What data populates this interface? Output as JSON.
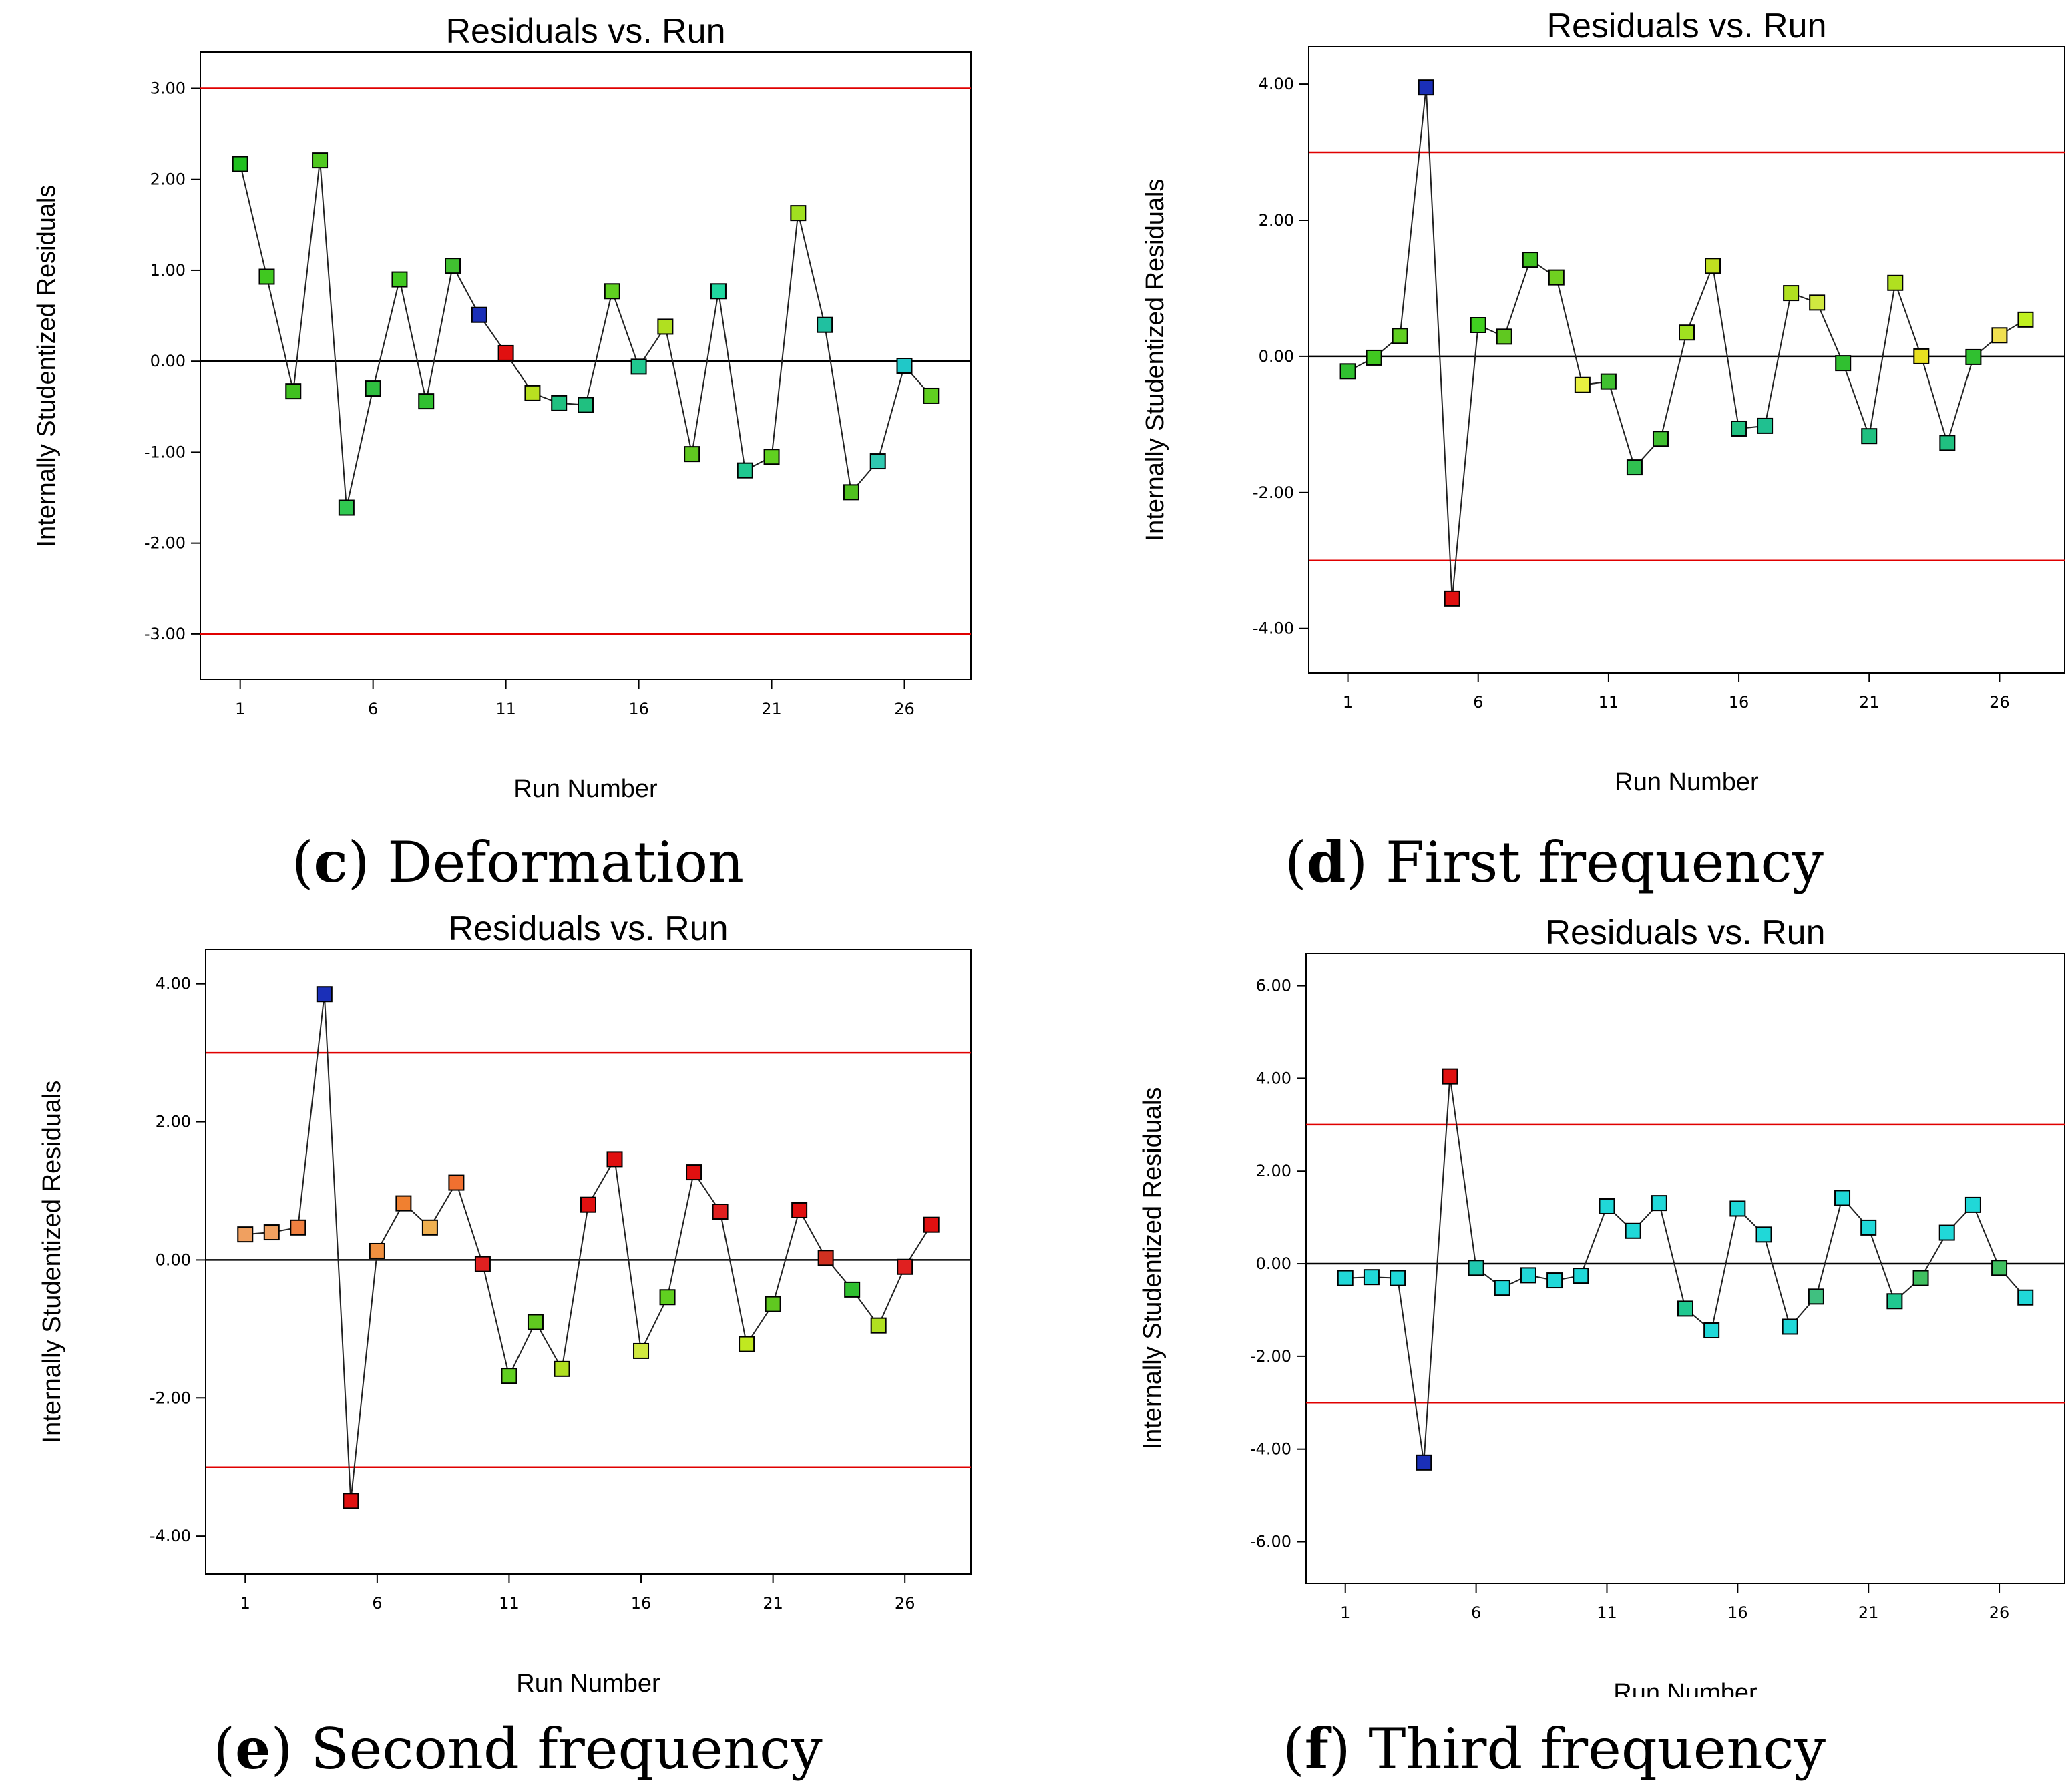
{
  "colors": {
    "limit_line": "#e00000",
    "zero_line": "#000000",
    "series_line": "#222222",
    "frame": "#000000"
  },
  "chart_data": [
    {
      "type": "scatter",
      "panel_letter": "c",
      "panel_name": "Deformation",
      "title": "Residuals vs. Run",
      "xlabel": "Run Number",
      "ylabel": "Internally Studentized Residuals",
      "xlim": [
        -0.5,
        28.5
      ],
      "xticks": [
        1,
        6,
        11,
        16,
        21,
        26
      ],
      "xtick_labels": [
        "1",
        "6",
        "11",
        "16",
        "21",
        "26"
      ],
      "ylim": [
        -3.5,
        3.4
      ],
      "yticks": [
        3,
        2,
        1,
        0,
        -1,
        -2,
        -3
      ],
      "ytick_labels": [
        "3.00",
        "2.00",
        "1.00",
        "0.00",
        "-1.00",
        "-2.00",
        "-3.00"
      ],
      "limit_lines": [
        3.0,
        -3.0
      ],
      "x": [
        1,
        2,
        3,
        4,
        5,
        6,
        7,
        8,
        9,
        10,
        11,
        12,
        13,
        14,
        15,
        16,
        17,
        18,
        19,
        20,
        21,
        22,
        23,
        24,
        25,
        26,
        27
      ],
      "values": [
        2.17,
        0.93,
        -0.33,
        2.21,
        -1.61,
        -0.3,
        0.9,
        -0.44,
        1.05,
        0.51,
        0.09,
        -0.35,
        -0.46,
        -0.48,
        0.77,
        -0.06,
        0.38,
        -1.02,
        0.77,
        -1.2,
        -1.05,
        1.63,
        0.4,
        -1.44,
        -1.1,
        -0.05,
        -0.38
      ],
      "point_colors": [
        "#20c020",
        "#40c820",
        "#40c020",
        "#50c820",
        "#30c850",
        "#30c040",
        "#40c820",
        "#30c030",
        "#40c030",
        "#1a2fb8",
        "#e01010",
        "#b8e020",
        "#20c080",
        "#20c080",
        "#60d020",
        "#20c890",
        "#b0e020",
        "#60c820",
        "#20d8a0",
        "#20c890",
        "#60d020",
        "#a0e020",
        "#20c0a0",
        "#50c020",
        "#30c8b0",
        "#20c8c8",
        "#60d020"
      ]
    },
    {
      "type": "scatter",
      "panel_letter": "d",
      "panel_name": "First frequency",
      "title": "Residuals vs. Run",
      "xlabel": "Run Number",
      "ylabel": "Internally Studentized Residuals",
      "xlim": [
        -0.5,
        28.5
      ],
      "xticks": [
        1,
        6,
        11,
        16,
        21,
        26
      ],
      "xtick_labels": [
        "1",
        "6",
        "11",
        "16",
        "21",
        "26"
      ],
      "ylim": [
        -4.65,
        4.55
      ],
      "yticks": [
        4,
        2,
        0,
        -2,
        -4
      ],
      "ytick_labels": [
        "4.00",
        "2.00",
        "0.00",
        "-2.00",
        "-4.00"
      ],
      "limit_lines": [
        3.0,
        -3.0
      ],
      "x": [
        1,
        2,
        3,
        4,
        5,
        6,
        7,
        8,
        9,
        10,
        11,
        12,
        13,
        14,
        15,
        16,
        17,
        18,
        19,
        20,
        21,
        22,
        23,
        24,
        25,
        26,
        27
      ],
      "values": [
        -0.22,
        -0.02,
        0.3,
        3.95,
        -3.56,
        0.46,
        0.29,
        1.42,
        1.16,
        -0.42,
        -0.37,
        -1.63,
        -1.21,
        0.35,
        1.33,
        -1.06,
        -1.02,
        0.93,
        0.79,
        -0.1,
        -1.17,
        1.08,
        0.0,
        -1.27,
        -0.01,
        0.31,
        0.54
      ],
      "point_colors": [
        "#30c030",
        "#40c820",
        "#60d020",
        "#1a2fb8",
        "#e01010",
        "#40d020",
        "#60c820",
        "#40c020",
        "#70d020",
        "#e8f040",
        "#40c030",
        "#30c050",
        "#40c030",
        "#a0e020",
        "#c0e020",
        "#20c080",
        "#20c090",
        "#b0e020",
        "#d0e840",
        "#30c030",
        "#20c080",
        "#b0e020",
        "#e8e020",
        "#20c080",
        "#30c030",
        "#f0e050",
        "#c0f020"
      ]
    },
    {
      "type": "scatter",
      "panel_letter": "e",
      "panel_name": "Second frequency",
      "title": "Residuals vs. Run",
      "xlabel": "Run Number",
      "ylabel": "Internally Studentized Residuals",
      "xlim": [
        -0.5,
        28.5
      ],
      "xticks": [
        1,
        6,
        11,
        16,
        21,
        26
      ],
      "xtick_labels": [
        "1",
        "6",
        "11",
        "16",
        "21",
        "26"
      ],
      "ylim": [
        -4.55,
        4.5
      ],
      "yticks": [
        4,
        2,
        0,
        -2,
        -4
      ],
      "ytick_labels": [
        "4.00",
        "2.00",
        "0.00",
        "-2.00",
        "-4.00"
      ],
      "limit_lines": [
        3.0,
        -3.0
      ],
      "x": [
        1,
        2,
        3,
        4,
        5,
        6,
        7,
        8,
        9,
        10,
        11,
        12,
        13,
        14,
        15,
        16,
        17,
        18,
        19,
        20,
        21,
        22,
        23,
        24,
        25,
        26,
        27
      ],
      "values": [
        0.37,
        0.4,
        0.47,
        3.85,
        -3.49,
        0.13,
        0.82,
        0.47,
        1.12,
        -0.06,
        -1.68,
        -0.9,
        -1.58,
        0.8,
        1.46,
        -1.32,
        -0.54,
        1.27,
        0.7,
        -1.22,
        -0.64,
        0.72,
        0.03,
        -0.43,
        -0.95,
        -0.1,
        0.51
      ],
      "point_colors": [
        "#f0a060",
        "#f0a060",
        "#f08040",
        "#1a2fb8",
        "#e01010",
        "#f09040",
        "#f08030",
        "#f0b050",
        "#f07030",
        "#e02020",
        "#60d020",
        "#60c820",
        "#b0e020",
        "#e01010",
        "#e01010",
        "#d0e840",
        "#60d020",
        "#e01010",
        "#e02020",
        "#c0e820",
        "#60c820",
        "#e01010",
        "#d03020",
        "#30c030",
        "#b0e020",
        "#e02020",
        "#e01010"
      ]
    },
    {
      "type": "scatter",
      "panel_letter": "f",
      "panel_name": "Third frequency",
      "title": "Residuals vs. Run",
      "xlabel": "Run Number",
      "ylabel": "Internally Studentized Residuals",
      "xlim": [
        -0.5,
        28.5
      ],
      "xticks": [
        1,
        6,
        11,
        16,
        21,
        26
      ],
      "xtick_labels": [
        "1",
        "6",
        "11",
        "16",
        "21",
        "26"
      ],
      "ylim": [
        -6.9,
        6.7
      ],
      "yticks": [
        6,
        4,
        2,
        0,
        -2,
        -4,
        -6
      ],
      "ytick_labels": [
        "6.00",
        "4.00",
        "2.00",
        "0.00",
        "-2.00",
        "-4.00",
        "-6.00"
      ],
      "limit_lines": [
        3.0,
        -3.0
      ],
      "x": [
        1,
        2,
        3,
        4,
        5,
        6,
        7,
        8,
        9,
        10,
        11,
        12,
        13,
        14,
        15,
        16,
        17,
        18,
        19,
        20,
        21,
        22,
        23,
        24,
        25,
        26,
        27
      ],
      "values": [
        -0.31,
        -0.29,
        -0.31,
        -4.29,
        4.04,
        -0.09,
        -0.52,
        -0.25,
        -0.36,
        -0.26,
        1.24,
        0.71,
        1.31,
        -0.97,
        -1.44,
        1.19,
        0.63,
        -1.36,
        -0.71,
        1.42,
        0.78,
        -0.81,
        -0.31,
        0.67,
        1.27,
        -0.09,
        -0.73
      ],
      "point_colors": [
        "#20d8d8",
        "#20d8d8",
        "#20d8d8",
        "#1a2fb8",
        "#e01010",
        "#20c8b0",
        "#20d8d8",
        "#20d8d8",
        "#20d8d8",
        "#20d8d8",
        "#20d8d8",
        "#20d8d8",
        "#20d8d8",
        "#20c890",
        "#20d8d8",
        "#20d8d8",
        "#20d8d8",
        "#20d8d8",
        "#40c080",
        "#20d8d8",
        "#20d8d8",
        "#20c890",
        "#40c060",
        "#20d8d8",
        "#20d8d8",
        "#40c060",
        "#20d8d8"
      ]
    }
  ]
}
